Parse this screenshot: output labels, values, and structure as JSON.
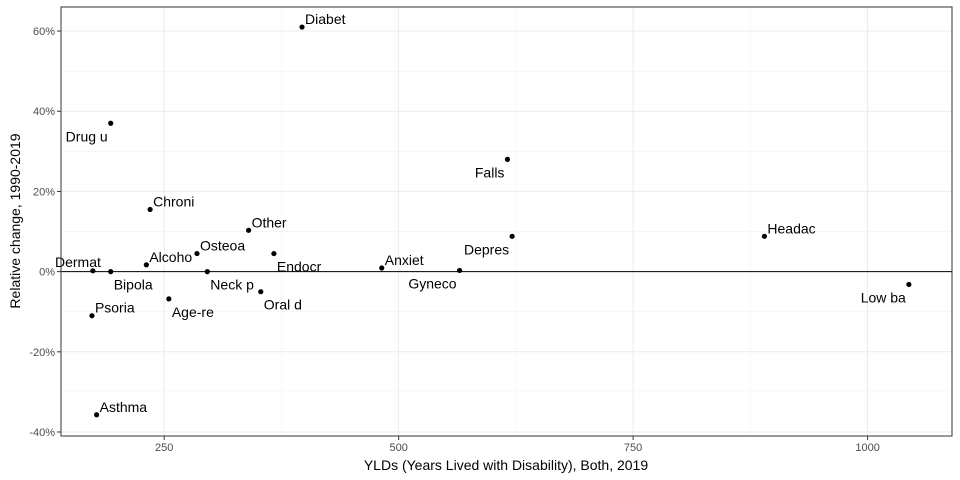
{
  "chart_data": {
    "type": "scatter",
    "xlabel": "YLDs (Years Lived with Disability), Both, 2019",
    "ylabel": "Relative change, 1990-2019",
    "xlim": [
      140,
      1090
    ],
    "ylim": [
      -0.41,
      0.66
    ],
    "x_ticks": [
      {
        "value": 250,
        "label": "250"
      },
      {
        "value": 500,
        "label": "500"
      },
      {
        "value": 750,
        "label": "750"
      },
      {
        "value": 1000,
        "label": "1000"
      }
    ],
    "y_ticks": [
      {
        "value": -0.4,
        "label": "-40%"
      },
      {
        "value": -0.2,
        "label": "-20%"
      },
      {
        "value": 0,
        "label": "0%"
      },
      {
        "value": 0.2,
        "label": "20%"
      },
      {
        "value": 0.4,
        "label": "40%"
      },
      {
        "value": 0.6,
        "label": "60%"
      }
    ],
    "grid": true,
    "hline_y": 0,
    "points": [
      {
        "label": "Diabet",
        "x": 397,
        "y": 0.61,
        "label_pos": "right"
      },
      {
        "label": "Drug u",
        "x": 193,
        "y": 0.37,
        "label_pos": "left-below"
      },
      {
        "label": "Falls",
        "x": 616,
        "y": 0.28,
        "label_pos": "left-below"
      },
      {
        "label": "Chroni",
        "x": 235,
        "y": 0.155,
        "label_pos": "right"
      },
      {
        "label": "Other",
        "x": 340,
        "y": 0.103,
        "label_pos": "right"
      },
      {
        "label": "Headac",
        "x": 890,
        "y": 0.088,
        "label_pos": "right"
      },
      {
        "label": "Depres",
        "x": 621,
        "y": 0.088,
        "label_pos": "left-below"
      },
      {
        "label": "Osteoa",
        "x": 285,
        "y": 0.045,
        "label_pos": "right"
      },
      {
        "label": "Endocr",
        "x": 367,
        "y": 0.045,
        "label_pos": "right-below"
      },
      {
        "label": "Alcoho",
        "x": 231,
        "y": 0.017,
        "label_pos": "right"
      },
      {
        "label": "Dermat",
        "x": 174,
        "y": 0.002,
        "label_pos": "left"
      },
      {
        "label": "Bipola",
        "x": 193,
        "y": 0.0,
        "label_pos": "right-below"
      },
      {
        "label": "Anxiet",
        "x": 482,
        "y": 0.009,
        "label_pos": "right"
      },
      {
        "label": "Gyneco",
        "x": 565,
        "y": 0.003,
        "label_pos": "left-below"
      },
      {
        "label": "Neck p",
        "x": 296,
        "y": 0.0,
        "label_pos": "right-below"
      },
      {
        "label": "Low ba",
        "x": 1044,
        "y": -0.032,
        "label_pos": "left-below"
      },
      {
        "label": "Oral d",
        "x": 353,
        "y": -0.05,
        "label_pos": "right-below"
      },
      {
        "label": "Age-re",
        "x": 255,
        "y": -0.068,
        "label_pos": "right-below"
      },
      {
        "label": "Psoria",
        "x": 173,
        "y": -0.11,
        "label_pos": "right"
      },
      {
        "label": "Asthma",
        "x": 178,
        "y": -0.357,
        "label_pos": "right"
      }
    ]
  }
}
